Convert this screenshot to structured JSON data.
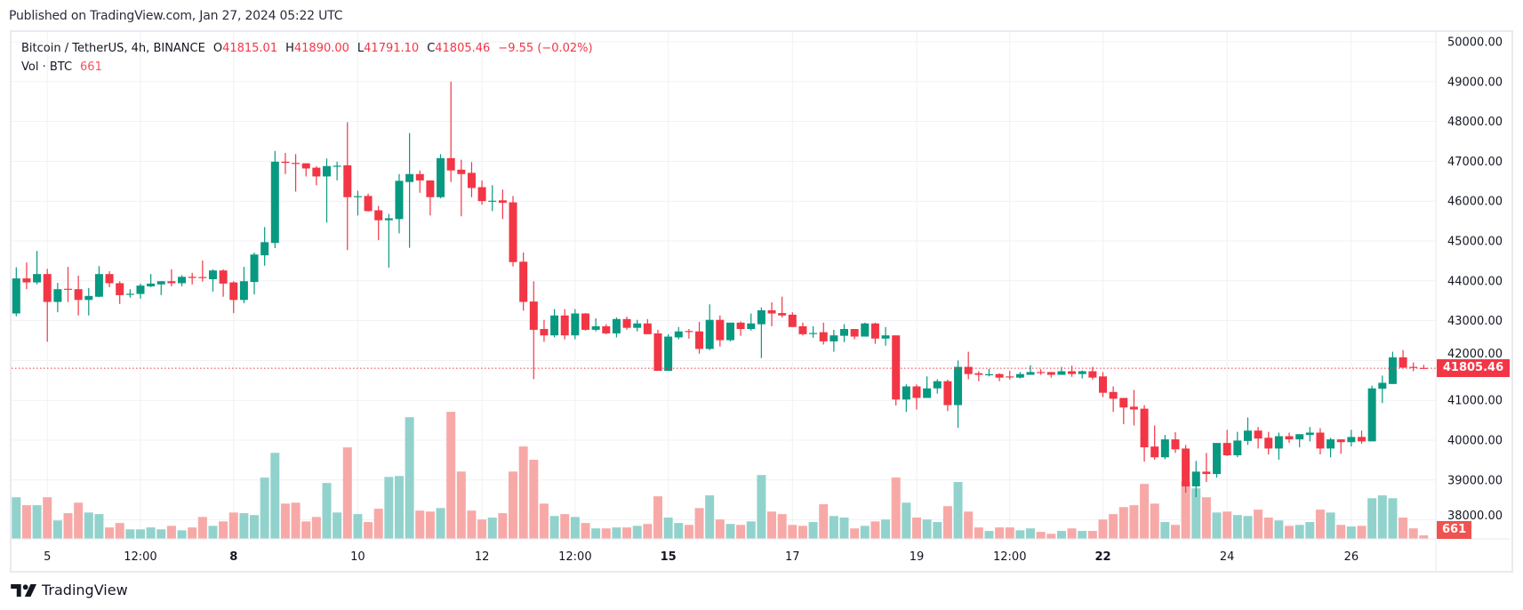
{
  "published": "Published on TradingView.com, Jan 27, 2024 05:22 UTC",
  "legend": {
    "symbol": "Bitcoin / TetherUS, 4h, BINANCE",
    "o_label": "O",
    "o": "41815.01",
    "h_label": "H",
    "h": "41890.00",
    "l_label": "L",
    "l": "41791.10",
    "c_label": "C",
    "c": "41805.46",
    "change": "−9.55 (−0.02%)",
    "vol_label": "Vol · BTC",
    "vol": "661"
  },
  "last_price_badge": "41805.46",
  "last_volume_badge": "661",
  "logo_text": "TradingView",
  "colors": {
    "up": "#089981",
    "down": "#f23645",
    "vol_up": "#92d2cc",
    "vol_down": "#f7a9a7",
    "grid": "#f0f1f4"
  },
  "chart_data": {
    "type": "candlestick",
    "symbol": "Bitcoin / TetherUS",
    "interval": "4h",
    "exchange": "BINANCE",
    "ylim": [
      38000,
      50000
    ],
    "grid": true,
    "last_price": 41805.46,
    "y_ticks": [
      "50000.00",
      "49000.00",
      "48000.00",
      "47000.00",
      "46000.00",
      "45000.00",
      "44000.00",
      "43000.00",
      "42000.00",
      "41000.00",
      "40000.00",
      "39000.00",
      "38000.00"
    ],
    "x_ticks": [
      {
        "label": "5",
        "time": "2024-01-05T00:00",
        "bold": false
      },
      {
        "label": "12:00",
        "time": "2024-01-06T12:00",
        "bold": false
      },
      {
        "label": "8",
        "time": "2024-01-08T00:00",
        "bold": true
      },
      {
        "label": "10",
        "time": "2024-01-10T00:00",
        "bold": false
      },
      {
        "label": "12",
        "time": "2024-01-12T00:00",
        "bold": false
      },
      {
        "label": "12:00",
        "time": "2024-01-13T12:00",
        "bold": false
      },
      {
        "label": "15",
        "time": "2024-01-15T00:00",
        "bold": true
      },
      {
        "label": "17",
        "time": "2024-01-17T00:00",
        "bold": false
      },
      {
        "label": "19",
        "time": "2024-01-19T00:00",
        "bold": false
      },
      {
        "label": "12:00",
        "time": "2024-01-20T12:00",
        "bold": false
      },
      {
        "label": "22",
        "time": "2024-01-22T00:00",
        "bold": true
      },
      {
        "label": "24",
        "time": "2024-01-24T00:00",
        "bold": false
      },
      {
        "label": "26",
        "time": "2024-01-26T00:00",
        "bold": false
      }
    ],
    "columns": [
      "time",
      "open",
      "high",
      "low",
      "close",
      "volume"
    ],
    "candles": [
      [
        "2024-01-04T12:00",
        43180,
        44340,
        43110,
        44060,
        7860
      ],
      [
        "2024-01-04T16:00",
        44060,
        44460,
        43790,
        43960,
        6360
      ],
      [
        "2024-01-04T20:00",
        43960,
        44750,
        43910,
        44170,
        6360
      ],
      [
        "2024-01-05T00:00",
        44170,
        44300,
        42470,
        43470,
        7860
      ],
      [
        "2024-01-05T04:00",
        43470,
        43950,
        43210,
        43790,
        3480
      ],
      [
        "2024-01-05T08:00",
        43800,
        44350,
        43470,
        43780,
        4860
      ],
      [
        "2024-01-05T12:00",
        43790,
        44130,
        43130,
        43520,
        6840
      ],
      [
        "2024-01-05T16:00",
        43520,
        43820,
        43130,
        43620,
        4980
      ],
      [
        "2024-01-05T20:00",
        43600,
        44370,
        43590,
        44170,
        4680
      ],
      [
        "2024-01-06T00:00",
        44170,
        44240,
        43840,
        43940,
        2160
      ],
      [
        "2024-01-06T04:00",
        43940,
        43990,
        43420,
        43640,
        3000
      ],
      [
        "2024-01-06T08:00",
        43660,
        43790,
        43580,
        43675,
        1800
      ],
      [
        "2024-01-06T12:00",
        43670,
        43930,
        43550,
        43880,
        1800
      ],
      [
        "2024-01-06T16:00",
        43860,
        44170,
        43840,
        43930,
        2160
      ],
      [
        "2024-01-06T20:00",
        43910,
        43990,
        43640,
        43990,
        1800
      ],
      [
        "2024-01-07T00:00",
        43990,
        44290,
        43860,
        43940,
        2460
      ],
      [
        "2024-01-07T04:00",
        43940,
        44140,
        43860,
        44100,
        1620
      ],
      [
        "2024-01-07T08:00",
        44100,
        44200,
        43910,
        44090,
        2160
      ],
      [
        "2024-01-07T12:00",
        44095,
        44510,
        43980,
        44080,
        4140
      ],
      [
        "2024-01-07T16:00",
        44040,
        44290,
        43730,
        44260,
        2460
      ],
      [
        "2024-01-07T20:00",
        44260,
        44290,
        43600,
        43930,
        3300
      ],
      [
        "2024-01-08T00:00",
        43960,
        43990,
        43190,
        43520,
        4980
      ],
      [
        "2024-01-08T04:00",
        43520,
        44350,
        43440,
        43990,
        4860
      ],
      [
        "2024-01-08T08:00",
        43970,
        44710,
        43660,
        44660,
        4500
      ],
      [
        "2024-01-08T12:00",
        44640,
        45350,
        44380,
        44970,
        11580
      ],
      [
        "2024-01-08T16:00",
        44950,
        47260,
        44820,
        46990,
        16260
      ],
      [
        "2024-01-08T20:00",
        46990,
        47210,
        46680,
        46960,
        6660
      ],
      [
        "2024-01-09T00:00",
        46960,
        47180,
        46240,
        46940,
        6840
      ],
      [
        "2024-01-09T04:00",
        46950,
        46950,
        46620,
        46820,
        3300
      ],
      [
        "2024-01-09T08:00",
        46840,
        46880,
        46400,
        46620,
        4140
      ],
      [
        "2024-01-09T12:00",
        46620,
        47070,
        45460,
        46880,
        10560
      ],
      [
        "2024-01-09T16:00",
        46870,
        46990,
        46520,
        46890,
        4980
      ],
      [
        "2024-01-09T20:00",
        46900,
        47980,
        44770,
        46100,
        17280
      ],
      [
        "2024-01-10T00:00",
        46110,
        46260,
        45640,
        46125,
        4680
      ],
      [
        "2024-01-10T04:00",
        46130,
        46190,
        45740,
        45750,
        3180
      ],
      [
        "2024-01-10T08:00",
        45770,
        45880,
        45020,
        45520,
        5700
      ],
      [
        "2024-01-10T12:00",
        45520,
        45680,
        44330,
        45570,
        11700
      ],
      [
        "2024-01-10T16:00",
        45550,
        46680,
        45190,
        46510,
        11880
      ],
      [
        "2024-01-10T20:00",
        46480,
        47710,
        44830,
        46680,
        22980
      ],
      [
        "2024-01-11T00:00",
        46680,
        46770,
        46210,
        46520,
        5340
      ],
      [
        "2024-01-11T04:00",
        46520,
        46520,
        45640,
        46100,
        5160
      ],
      [
        "2024-01-11T08:00",
        46100,
        47180,
        46070,
        47080,
        5820
      ],
      [
        "2024-01-11T12:00",
        47080,
        49000,
        46480,
        46770,
        24000
      ],
      [
        "2024-01-11T16:00",
        46790,
        47040,
        45620,
        46680,
        12720
      ],
      [
        "2024-01-11T20:00",
        46710,
        46980,
        46100,
        46330,
        5340
      ],
      [
        "2024-01-12T00:00",
        46350,
        46520,
        45910,
        46000,
        3660
      ],
      [
        "2024-01-12T04:00",
        45995,
        46400,
        45750,
        46010,
        4020
      ],
      [
        "2024-01-12T08:00",
        46020,
        46290,
        45550,
        45960,
        4860
      ],
      [
        "2024-01-12T12:00",
        45970,
        46130,
        44360,
        44470,
        12720
      ],
      [
        "2024-01-12T16:00",
        44480,
        44710,
        43250,
        43470,
        17460
      ],
      [
        "2024-01-12T20:00",
        43480,
        43990,
        41530,
        42770,
        14940
      ],
      [
        "2024-01-13T00:00",
        42790,
        43020,
        42470,
        42630,
        6660
      ],
      [
        "2024-01-13T04:00",
        42630,
        43290,
        42580,
        43130,
        4320
      ],
      [
        "2024-01-13T08:00",
        43130,
        43290,
        42530,
        42630,
        4680
      ],
      [
        "2024-01-13T12:00",
        42630,
        43290,
        42530,
        43180,
        4140
      ],
      [
        "2024-01-13T16:00",
        43180,
        43190,
        42750,
        42770,
        3000
      ],
      [
        "2024-01-13T20:00",
        42770,
        43060,
        42730,
        42860,
        1980
      ],
      [
        "2024-01-14T00:00",
        42860,
        42910,
        42660,
        42680,
        1980
      ],
      [
        "2024-01-14T04:00",
        42680,
        43080,
        42580,
        43040,
        2160
      ],
      [
        "2024-01-14T08:00",
        43040,
        43100,
        42770,
        42820,
        2160
      ],
      [
        "2024-01-14T12:00",
        42820,
        43020,
        42730,
        42930,
        2460
      ],
      [
        "2024-01-14T16:00",
        42930,
        43040,
        42660,
        42660,
        2820
      ],
      [
        "2024-01-14T20:00",
        42680,
        42770,
        41740,
        41740,
        8040
      ],
      [
        "2024-01-15T00:00",
        41740,
        42660,
        41740,
        42600,
        4020
      ],
      [
        "2024-01-15T04:00",
        42580,
        42840,
        42530,
        42730,
        3000
      ],
      [
        "2024-01-15T08:00",
        42740,
        42790,
        42550,
        42720,
        2640
      ],
      [
        "2024-01-15T12:00",
        42730,
        42970,
        42170,
        42290,
        5820
      ],
      [
        "2024-01-15T16:00",
        42290,
        43410,
        42260,
        43020,
        8220
      ],
      [
        "2024-01-15T20:00",
        43020,
        43130,
        42350,
        42510,
        3660
      ],
      [
        "2024-01-16T00:00",
        42510,
        42950,
        42480,
        42950,
        2820
      ],
      [
        "2024-01-16T04:00",
        42950,
        42980,
        42620,
        42790,
        2640
      ],
      [
        "2024-01-16T08:00",
        42790,
        43180,
        42750,
        42930,
        3300
      ],
      [
        "2024-01-16T12:00",
        42910,
        43330,
        42060,
        43260,
        12060
      ],
      [
        "2024-01-16T16:00",
        43260,
        43460,
        42860,
        43180,
        5160
      ],
      [
        "2024-01-16T20:00",
        43190,
        43600,
        43080,
        43130,
        4680
      ],
      [
        "2024-01-17T00:00",
        43150,
        43210,
        42840,
        42840,
        2640
      ],
      [
        "2024-01-17T04:00",
        42860,
        42950,
        42630,
        42660,
        2460
      ],
      [
        "2024-01-17T08:00",
        42680,
        42860,
        42570,
        42690,
        3180
      ],
      [
        "2024-01-17T12:00",
        42710,
        42950,
        42400,
        42480,
        6540
      ],
      [
        "2024-01-17T16:00",
        42480,
        42770,
        42220,
        42630,
        4320
      ],
      [
        "2024-01-17T20:00",
        42620,
        42910,
        42460,
        42790,
        4020
      ],
      [
        "2024-01-18T00:00",
        42790,
        42790,
        42530,
        42600,
        1980
      ],
      [
        "2024-01-18T04:00",
        42600,
        42950,
        42600,
        42930,
        2460
      ],
      [
        "2024-01-18T08:00",
        42930,
        42950,
        42420,
        42550,
        3300
      ],
      [
        "2024-01-18T12:00",
        42550,
        42840,
        42370,
        42630,
        3660
      ],
      [
        "2024-01-18T16:00",
        42630,
        42630,
        40870,
        41020,
        11580
      ],
      [
        "2024-01-18T20:00",
        41020,
        41400,
        40710,
        41350,
        6840
      ],
      [
        "2024-01-19T00:00",
        41350,
        41400,
        40770,
        41060,
        4020
      ],
      [
        "2024-01-19T04:00",
        41060,
        41600,
        41060,
        41300,
        3660
      ],
      [
        "2024-01-19T08:00",
        41300,
        41530,
        41170,
        41480,
        3180
      ],
      [
        "2024-01-19T12:00",
        41480,
        41520,
        40730,
        40880,
        6180
      ],
      [
        "2024-01-19T16:00",
        40880,
        42000,
        40310,
        41840,
        10740
      ],
      [
        "2024-01-19T20:00",
        41840,
        42220,
        41530,
        41660,
        5160
      ],
      [
        "2024-01-20T00:00",
        41680,
        41730,
        41480,
        41640,
        2160
      ],
      [
        "2024-01-20T04:00",
        41640,
        41790,
        41600,
        41655,
        1500
      ],
      [
        "2024-01-20T08:00",
        41660,
        41680,
        41480,
        41570,
        2160
      ],
      [
        "2024-01-20T12:00",
        41600,
        41740,
        41520,
        41590,
        2160
      ],
      [
        "2024-01-20T16:00",
        41570,
        41710,
        41550,
        41660,
        1620
      ],
      [
        "2024-01-20T20:00",
        41640,
        41880,
        41640,
        41710,
        1980
      ],
      [
        "2024-01-21T00:00",
        41710,
        41780,
        41640,
        41700,
        1320
      ],
      [
        "2024-01-21T04:00",
        41710,
        41710,
        41570,
        41640,
        960
      ],
      [
        "2024-01-21T08:00",
        41640,
        41840,
        41640,
        41730,
        1500
      ],
      [
        "2024-01-21T12:00",
        41730,
        41870,
        41590,
        41660,
        1980
      ],
      [
        "2024-01-21T16:00",
        41660,
        41750,
        41550,
        41730,
        1500
      ],
      [
        "2024-01-21T20:00",
        41730,
        41840,
        41520,
        41570,
        1500
      ],
      [
        "2024-01-22T00:00",
        41600,
        41710,
        41080,
        41190,
        3660
      ],
      [
        "2024-01-22T04:00",
        41210,
        41350,
        40710,
        41040,
        4680
      ],
      [
        "2024-01-22T08:00",
        41060,
        41060,
        40400,
        40820,
        6000
      ],
      [
        "2024-01-22T12:00",
        40840,
        41260,
        40370,
        40770,
        6360
      ],
      [
        "2024-01-22T16:00",
        40790,
        40880,
        39460,
        39820,
        10380
      ],
      [
        "2024-01-22T20:00",
        39840,
        40370,
        39510,
        39570,
        6660
      ],
      [
        "2024-01-23T00:00",
        39570,
        40130,
        39520,
        40020,
        3180
      ],
      [
        "2024-01-23T04:00",
        40020,
        40200,
        39680,
        39770,
        2640
      ],
      [
        "2024-01-23T08:00",
        39790,
        39880,
        38680,
        38840,
        10860
      ],
      [
        "2024-01-23T12:00",
        38840,
        39480,
        38570,
        39210,
        9540
      ],
      [
        "2024-01-23T16:00",
        39210,
        39680,
        38950,
        39150,
        7860
      ],
      [
        "2024-01-23T20:00",
        39150,
        39930,
        39060,
        39930,
        4980
      ],
      [
        "2024-01-24T00:00",
        39930,
        40260,
        39600,
        39620,
        5160
      ],
      [
        "2024-01-24T04:00",
        39620,
        40210,
        39570,
        39990,
        4500
      ],
      [
        "2024-01-24T08:00",
        39980,
        40570,
        39880,
        40240,
        4320
      ],
      [
        "2024-01-24T12:00",
        40240,
        40330,
        39790,
        40040,
        5520
      ],
      [
        "2024-01-24T16:00",
        40060,
        40210,
        39640,
        39790,
        4020
      ],
      [
        "2024-01-24T20:00",
        39790,
        40190,
        39510,
        40100,
        3480
      ],
      [
        "2024-01-25T00:00",
        40100,
        40190,
        39930,
        40020,
        2460
      ],
      [
        "2024-01-25T04:00",
        40020,
        40150,
        39820,
        40150,
        2640
      ],
      [
        "2024-01-25T08:00",
        40130,
        40330,
        39970,
        40190,
        3180
      ],
      [
        "2024-01-25T12:00",
        40190,
        40300,
        39640,
        39790,
        5520
      ],
      [
        "2024-01-25T16:00",
        39790,
        40060,
        39570,
        40020,
        4980
      ],
      [
        "2024-01-25T20:00",
        40020,
        40020,
        39660,
        39950,
        2640
      ],
      [
        "2024-01-26T00:00",
        39950,
        40260,
        39840,
        40080,
        2340
      ],
      [
        "2024-01-26T04:00",
        40080,
        40240,
        39910,
        39970,
        2460
      ],
      [
        "2024-01-26T08:00",
        39970,
        41370,
        39970,
        41300,
        7680
      ],
      [
        "2024-01-26T12:00",
        41290,
        41620,
        40930,
        41440,
        8220
      ],
      [
        "2024-01-26T16:00",
        41410,
        42220,
        41410,
        42080,
        7680
      ],
      [
        "2024-01-26T20:00",
        42080,
        42260,
        41820,
        41820,
        4020
      ],
      [
        "2024-01-27T00:00",
        41840,
        41950,
        41730,
        41815,
        1980
      ],
      [
        "2024-01-27T04:00",
        41815.01,
        41890.0,
        41791.1,
        41805.46,
        661
      ]
    ]
  }
}
